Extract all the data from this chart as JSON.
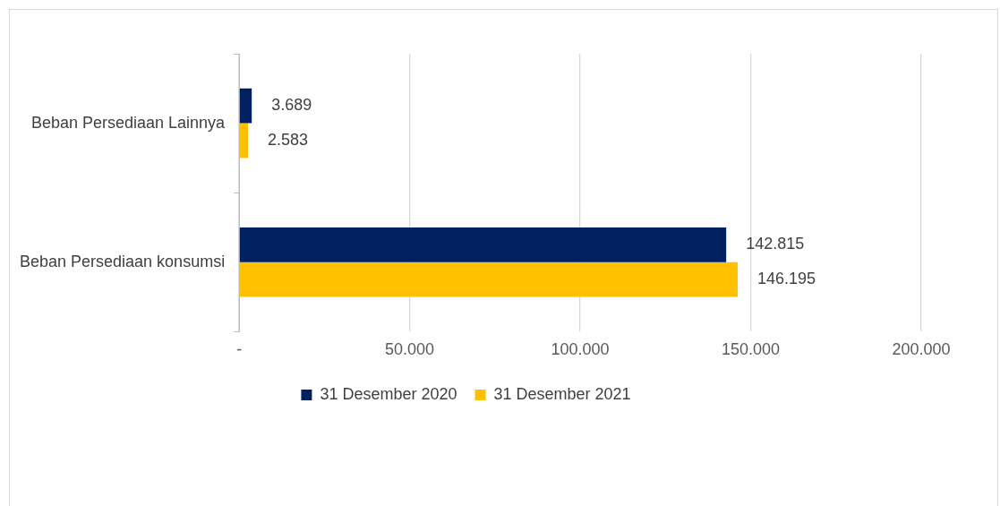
{
  "chart_data": {
    "type": "bar",
    "orientation": "horizontal",
    "categories": [
      "Beban Persediaan Lainnya",
      "Beban Persediaan konsumsi"
    ],
    "series": [
      {
        "name": "31 Desember 2020",
        "color": "#002060",
        "values": [
          3689,
          142815
        ],
        "value_labels": [
          "3.689",
          "142.815"
        ]
      },
      {
        "name": "31 Desember 2021",
        "color": "#ffc000",
        "values": [
          2583,
          146195
        ],
        "value_labels": [
          "2.583",
          "146.195"
        ]
      }
    ],
    "xlim": [
      0,
      200000
    ],
    "xticks": [
      {
        "value": 0,
        "label": "-"
      },
      {
        "value": 50000,
        "label": "50.000"
      },
      {
        "value": 100000,
        "label": "100.000"
      },
      {
        "value": 150000,
        "label": "150.000"
      },
      {
        "value": 200000,
        "label": "200.000"
      }
    ],
    "grid": "x",
    "legend": "bottom"
  }
}
